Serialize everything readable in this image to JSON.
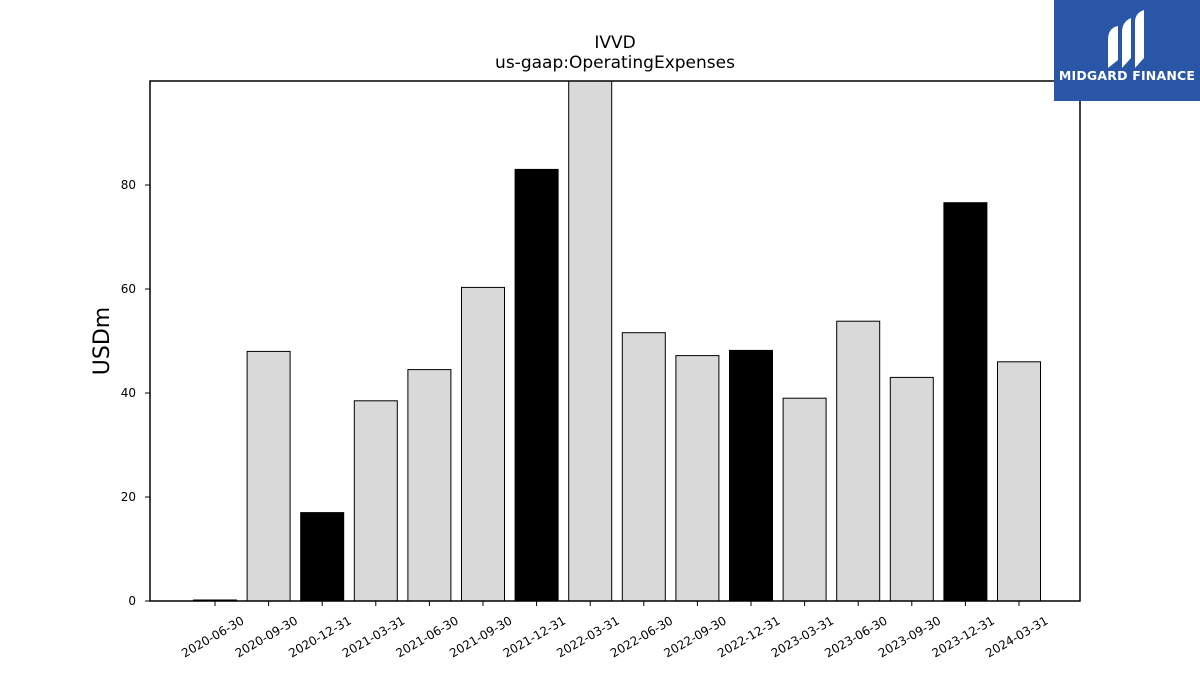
{
  "logo": {
    "text": "MIDGARD FINANCE",
    "background": "#2a56a8"
  },
  "chart_data": {
    "type": "bar",
    "title": "IVVD",
    "subtitle": "us-gaap:OperatingExpenses",
    "ylabel": "USDm",
    "xlabel": "",
    "ylim": [
      0,
      100
    ],
    "yticks": [
      0,
      20,
      40,
      60,
      80
    ],
    "grid": false,
    "categories": [
      "2020-06-30",
      "2020-09-30",
      "2020-12-31",
      "2021-03-31",
      "2021-06-30",
      "2021-09-30",
      "2021-12-31",
      "2022-03-31",
      "2022-06-30",
      "2022-09-30",
      "2022-12-31",
      "2023-03-31",
      "2023-06-30",
      "2023-09-30",
      "2023-12-31",
      "2024-03-31"
    ],
    "values": [
      0.2,
      48.0,
      17.0,
      38.5,
      44.5,
      60.3,
      83.0,
      100.0,
      51.6,
      47.2,
      48.2,
      39.0,
      53.8,
      43.0,
      76.6,
      46.0
    ],
    "highlighted": [
      false,
      false,
      true,
      false,
      false,
      false,
      true,
      false,
      false,
      false,
      true,
      false,
      false,
      false,
      true,
      false
    ],
    "colors": {
      "normal": "#d9d9d9",
      "highlight": "#000000",
      "edge": "#000000"
    }
  }
}
